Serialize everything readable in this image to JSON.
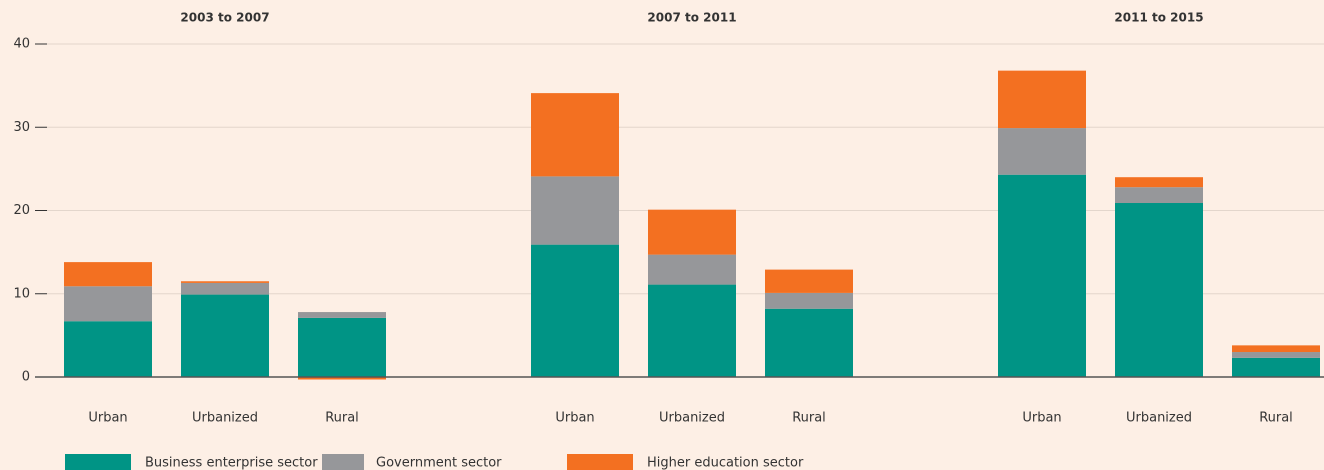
{
  "chart_data": {
    "type": "bar",
    "stacked": true,
    "groups": [
      {
        "name": "2003 to 2007",
        "categories": [
          "Urban",
          "Urbanized",
          "Rural"
        ]
      },
      {
        "name": "2007 to 2011",
        "categories": [
          "Urban",
          "Urbanized",
          "Rural"
        ]
      },
      {
        "name": "2011 to 2015",
        "categories": [
          "Urban",
          "Urbanized",
          "Rural"
        ]
      }
    ],
    "series": [
      {
        "name": "Business enterprise sector",
        "color": "#009485",
        "values": [
          6.7,
          9.9,
          7.1,
          15.9,
          11.1,
          8.2,
          24.3,
          20.9,
          2.3
        ]
      },
      {
        "name": "Government sector",
        "color": "#96979a",
        "values": [
          4.2,
          1.4,
          0.7,
          8.2,
          3.6,
          1.9,
          5.6,
          1.9,
          0.7
        ]
      },
      {
        "name": "Higher education sector",
        "color": "#f37021",
        "values": [
          2.9,
          0.2,
          -0.3,
          10.0,
          5.4,
          2.8,
          6.9,
          1.2,
          0.8
        ]
      }
    ],
    "ylim": [
      0,
      40
    ],
    "yticks": [
      0,
      10,
      20,
      30,
      40
    ],
    "grid": true,
    "legend": "bottom"
  }
}
